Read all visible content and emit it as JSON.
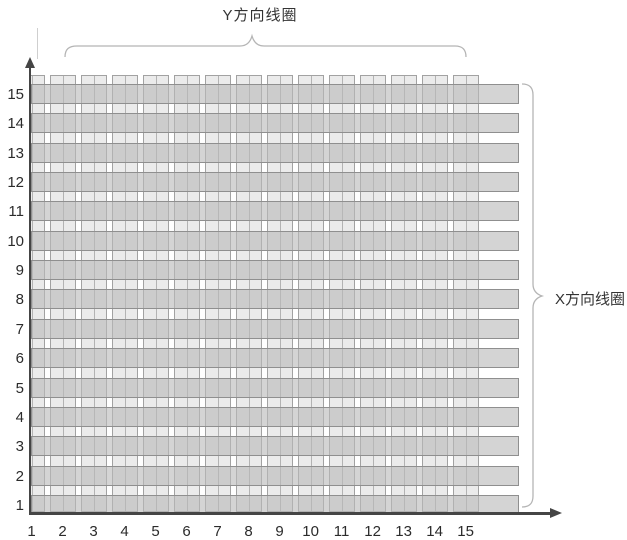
{
  "labels": {
    "top": "Y方向线圈",
    "right": "X方向线圈"
  },
  "grid": {
    "columns": 15,
    "rows": 15
  },
  "x_axis": {
    "labels": [
      "1",
      "2",
      "3",
      "4",
      "5",
      "6",
      "7",
      "8",
      "9",
      "10",
      "11",
      "12",
      "13",
      "14",
      "15"
    ]
  },
  "y_axis": {
    "labels": [
      "15",
      "14",
      "13",
      "12",
      "11",
      "10",
      "9",
      "8",
      "7",
      "6",
      "5",
      "4",
      "3",
      "2",
      "1"
    ]
  },
  "colors": {
    "y_coil_fill": "#ebebeb",
    "y_coil_border": "#a2a2a2",
    "y_coil_divider": "#b3b3b3",
    "x_coil_fill": "rgba(185,185,185,0.62)",
    "x_coil_border": "#8f8f8f",
    "axis": "#454545",
    "brace": "#b5b5b5",
    "label_text": "#333333"
  }
}
